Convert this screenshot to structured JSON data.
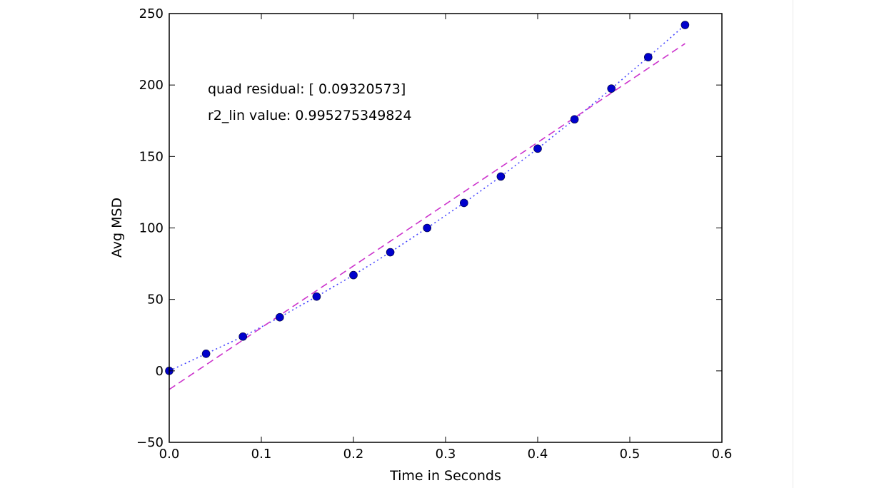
{
  "chart_data": {
    "type": "scatter",
    "xlabel": "Time in Seconds",
    "ylabel": "Avg MSD",
    "xlim": [
      0.0,
      0.6
    ],
    "ylim": [
      -50,
      250
    ],
    "xticks": [
      0.0,
      0.1,
      0.2,
      0.3,
      0.4,
      0.5,
      0.6
    ],
    "xtick_labels": [
      "0.0",
      "0.1",
      "0.2",
      "0.3",
      "0.4",
      "0.5",
      "0.6"
    ],
    "yticks": [
      -50,
      0,
      50,
      100,
      150,
      200,
      250
    ],
    "ytick_labels": [
      "−50",
      "0",
      "50",
      "100",
      "150",
      "200",
      "250"
    ],
    "grid": false,
    "annotations": [
      "quad residual: [ 0.09320573]",
      "r2_lin value: 0.995275349824"
    ],
    "series": [
      {
        "style": "markers",
        "color": "#0000cc",
        "x": [
          0.0,
          0.04,
          0.08,
          0.12,
          0.16,
          0.2,
          0.24,
          0.28,
          0.32,
          0.36,
          0.4,
          0.44,
          0.48,
          0.52,
          0.56
        ],
        "y": [
          0,
          12,
          24,
          37.5,
          52,
          67,
          83,
          100,
          117.5,
          136,
          155.5,
          176,
          197.5,
          219.5,
          242
        ]
      },
      {
        "style": "dotted",
        "color": "#4444ff",
        "x": [
          0.0,
          0.04,
          0.08,
          0.12,
          0.16,
          0.2,
          0.24,
          0.28,
          0.32,
          0.36,
          0.4,
          0.44,
          0.48,
          0.52,
          0.56
        ],
        "y": [
          0,
          12,
          24,
          37.5,
          52,
          67,
          83,
          100,
          117.5,
          136,
          155.5,
          176,
          197.5,
          219.5,
          242
        ]
      },
      {
        "style": "dashed",
        "color": "#cc33cc",
        "x": [
          0.0,
          0.56
        ],
        "y": [
          -13,
          229
        ]
      }
    ]
  }
}
